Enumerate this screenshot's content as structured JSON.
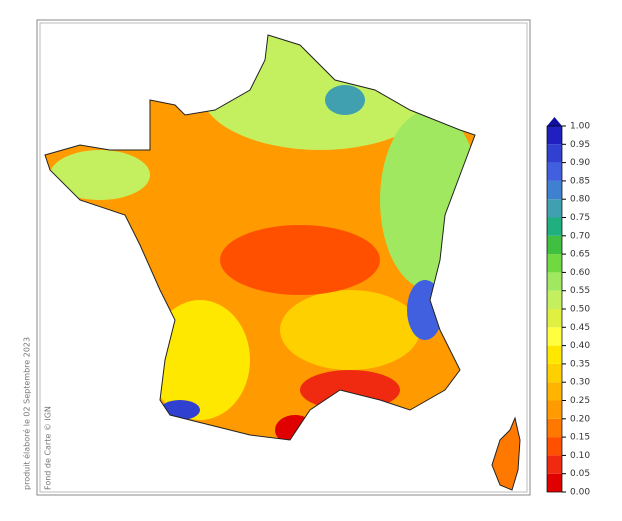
{
  "notes": {
    "produced": "produit élaboré le 02 Septembre 2023",
    "basemap": "Fond de Carte © IGN"
  },
  "legend": {
    "ticks": [
      {
        "value": 0,
        "label": "0.00"
      },
      {
        "value": 0.05,
        "label": "0.05"
      },
      {
        "value": 0.1,
        "label": "0.10"
      },
      {
        "value": 0.15,
        "label": "0.15"
      },
      {
        "value": 0.2,
        "label": "0.20"
      },
      {
        "value": 0.25,
        "label": "0.25"
      },
      {
        "value": 0.3,
        "label": "0.30"
      },
      {
        "value": 0.35,
        "label": "0.35"
      },
      {
        "value": 0.4,
        "label": "0.40"
      },
      {
        "value": 0.45,
        "label": "0.45"
      },
      {
        "value": 0.5,
        "label": "0.50"
      },
      {
        "value": 0.55,
        "label": "0.55"
      },
      {
        "value": 0.6,
        "label": "0.60"
      },
      {
        "value": 0.65,
        "label": "0.65"
      },
      {
        "value": 0.7,
        "label": "0.70"
      },
      {
        "value": 0.75,
        "label": "0.75"
      },
      {
        "value": 0.8,
        "label": "0.80"
      },
      {
        "value": 0.85,
        "label": "0.85"
      },
      {
        "value": 0.9,
        "label": "0.90"
      },
      {
        "value": 0.95,
        "label": "0.95"
      },
      {
        "value": 1,
        "label": "1.00"
      }
    ],
    "colors": [
      "#e00000",
      "#f02a10",
      "#ff5000",
      "#ff7800",
      "#ff9a00",
      "#ffb400",
      "#ffd000",
      "#ffe800",
      "#ffff40",
      "#e0f040",
      "#c4f060",
      "#a0e860",
      "#70d840",
      "#40c040",
      "#20b080",
      "#40a0b0",
      "#4080d0",
      "#4060e0",
      "#3040d0",
      "#2020c0"
    ],
    "over_color": "#1010a0"
  }
}
